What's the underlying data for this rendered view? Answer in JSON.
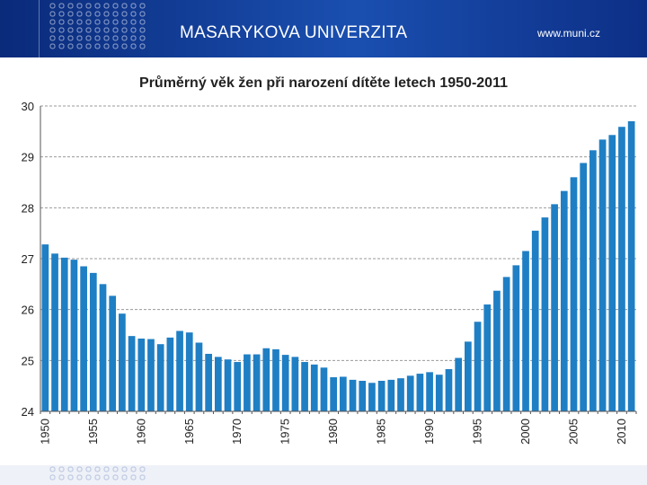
{
  "header": {
    "university_name": "MASARYKOVA UNIVERZITA",
    "website": "www.muni.cz",
    "bg_color": "#12409a"
  },
  "chart_data": {
    "type": "bar",
    "title": "Průměrný věk žen při narození dítěte letech 1950-2011",
    "xlabel": "",
    "ylabel": "",
    "ylim": [
      24,
      30
    ],
    "yticks": [
      24,
      25,
      26,
      27,
      28,
      29,
      30
    ],
    "x_tick_labels": [
      "1950",
      "1955",
      "1960",
      "1965",
      "1970",
      "1975",
      "1980",
      "1985",
      "1990",
      "1995",
      "2000",
      "2005",
      "2010"
    ],
    "grid": "horizontal dashed",
    "bar_color": "#1f7fc4",
    "categories": [
      1950,
      1951,
      1952,
      1953,
      1954,
      1955,
      1956,
      1957,
      1958,
      1959,
      1960,
      1961,
      1962,
      1963,
      1964,
      1965,
      1966,
      1967,
      1968,
      1969,
      1970,
      1971,
      1972,
      1973,
      1974,
      1975,
      1976,
      1977,
      1978,
      1979,
      1980,
      1981,
      1982,
      1983,
      1984,
      1985,
      1986,
      1987,
      1988,
      1989,
      1990,
      1991,
      1992,
      1993,
      1994,
      1995,
      1996,
      1997,
      1998,
      1999,
      2000,
      2001,
      2002,
      2003,
      2004,
      2005,
      2006,
      2007,
      2008,
      2009,
      2010,
      2011
    ],
    "values": [
      27.28,
      27.1,
      27.02,
      26.98,
      26.85,
      26.72,
      26.5,
      26.27,
      25.92,
      25.48,
      25.43,
      25.42,
      25.32,
      25.45,
      25.58,
      25.55,
      25.35,
      25.13,
      25.07,
      25.02,
      24.97,
      25.12,
      25.12,
      25.24,
      25.22,
      25.11,
      25.07,
      24.97,
      24.92,
      24.86,
      24.67,
      24.68,
      24.62,
      24.6,
      24.56,
      24.6,
      24.62,
      24.65,
      24.7,
      24.74,
      24.77,
      24.72,
      24.83,
      25.05,
      25.37,
      25.76,
      26.1,
      26.37,
      26.64,
      26.87,
      27.15,
      27.55,
      27.81,
      28.07,
      28.33,
      28.6,
      28.88,
      29.13,
      29.34,
      29.43,
      29.59,
      29.7
    ]
  }
}
